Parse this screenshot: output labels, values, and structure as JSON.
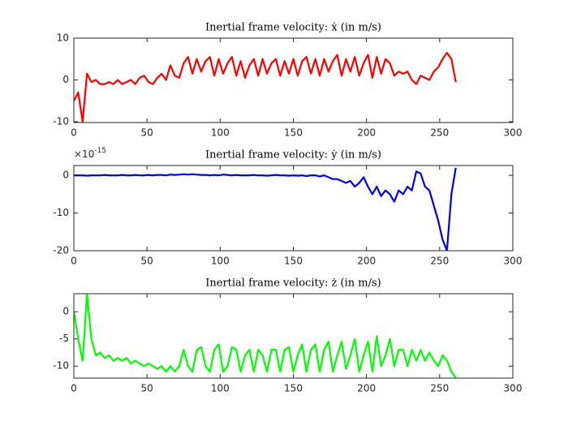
{
  "chart_data": [
    {
      "type": "line",
      "title": "Inertial frame velocity: ẋ (in m/s)",
      "x": [
        0,
        3,
        6,
        9,
        12,
        15,
        18,
        21,
        24,
        27,
        30,
        33,
        36,
        39,
        42,
        45,
        48,
        51,
        54,
        57,
        60,
        63,
        66,
        69,
        72,
        75,
        78,
        81,
        84,
        87,
        90,
        93,
        96,
        99,
        102,
        105,
        108,
        111,
        114,
        117,
        120,
        123,
        126,
        129,
        132,
        135,
        138,
        141,
        144,
        147,
        150,
        153,
        156,
        159,
        162,
        165,
        168,
        171,
        174,
        177,
        180,
        183,
        186,
        189,
        192,
        195,
        198,
        201,
        204,
        207,
        210,
        213,
        216,
        219,
        222,
        225,
        228,
        231,
        234,
        237,
        240,
        243,
        246,
        249,
        252,
        255,
        258,
        261
      ],
      "values": [
        -5,
        -3,
        -10,
        1.5,
        -0.5,
        0,
        -1,
        -1,
        -0.5,
        -1,
        0,
        -1,
        -0.5,
        0,
        -1,
        0.5,
        1,
        -0.5,
        -1,
        0.5,
        1.5,
        0,
        3.5,
        1,
        0.5,
        4,
        5.5,
        1.5,
        5,
        2,
        4.5,
        5.5,
        1,
        5,
        1.5,
        4,
        5.5,
        1,
        4.5,
        0.5,
        3.5,
        5,
        1,
        5,
        1.5,
        4,
        5,
        1,
        4.5,
        1.5,
        5,
        1,
        4.5,
        5.5,
        1.5,
        5,
        1,
        5,
        2,
        4.5,
        6,
        1,
        5,
        2,
        5.5,
        1,
        4,
        6,
        0.5,
        5.5,
        1.5,
        5,
        4,
        1,
        2,
        1.5,
        2,
        0,
        -1,
        1,
        0.5,
        0,
        2,
        3,
        5,
        6.5,
        5,
        -0.5
      ],
      "color": "#ff0000",
      "xlim": [
        0,
        300
      ],
      "xticks": [
        0,
        50,
        100,
        150,
        200,
        250,
        300
      ],
      "ylim": [
        -10.2,
        10
      ],
      "yticks": [
        -10,
        0,
        10
      ]
    },
    {
      "type": "line",
      "title": "Inertial frame velocity: ẏ (in m/s)",
      "y_multiplier": "×10",
      "y_exponent": "-15",
      "x": [
        0,
        3,
        6,
        9,
        12,
        15,
        18,
        21,
        24,
        27,
        30,
        33,
        36,
        39,
        42,
        45,
        48,
        51,
        54,
        57,
        60,
        63,
        66,
        69,
        72,
        75,
        78,
        81,
        84,
        87,
        90,
        93,
        96,
        99,
        102,
        105,
        108,
        111,
        114,
        117,
        120,
        123,
        126,
        129,
        132,
        135,
        138,
        141,
        144,
        147,
        150,
        153,
        156,
        159,
        162,
        165,
        168,
        171,
        174,
        177,
        180,
        183,
        186,
        189,
        192,
        195,
        198,
        201,
        204,
        207,
        210,
        213,
        216,
        219,
        222,
        225,
        228,
        231,
        234,
        237,
        240,
        243,
        246,
        249,
        252,
        255,
        258,
        261
      ],
      "values": [
        0,
        0,
        0,
        -0.1,
        0,
        0,
        0,
        0.1,
        0,
        0,
        0,
        0.1,
        0,
        0,
        0.1,
        0,
        0,
        0.1,
        0,
        0.1,
        0.1,
        0,
        0.2,
        0.1,
        0.2,
        0.3,
        0.2,
        0.3,
        0.2,
        0.1,
        0.1,
        0,
        0.1,
        0,
        0.2,
        0.1,
        0,
        0.1,
        0,
        0,
        0,
        0.1,
        0,
        0,
        -0.1,
        0,
        0.1,
        0,
        0,
        -0.1,
        0,
        -0.1,
        0,
        -0.2,
        0,
        0,
        -0.3,
        0,
        -0.5,
        -1,
        -1,
        -1.5,
        -2,
        -1.5,
        -3,
        -2,
        -0.5,
        -3,
        -5,
        -3,
        -5.5,
        -4,
        -5,
        -7,
        -4,
        -5,
        -3,
        -4,
        1,
        0.5,
        -3,
        -4,
        -8,
        -12,
        -17,
        -20,
        -5,
        2
      ],
      "color": "#0000e6",
      "xlim": [
        0,
        300
      ],
      "xticks": [
        0,
        50,
        100,
        150,
        200,
        250,
        300
      ],
      "ylim": [
        -20,
        2.6
      ],
      "yticks": [
        -20,
        -10,
        0
      ]
    },
    {
      "type": "line",
      "title": "Inertial frame velocity: ż (in m/s)",
      "x": [
        0,
        3,
        6,
        9,
        12,
        15,
        18,
        21,
        24,
        27,
        30,
        33,
        36,
        39,
        42,
        45,
        48,
        51,
        54,
        57,
        60,
        63,
        66,
        69,
        72,
        75,
        78,
        81,
        84,
        87,
        90,
        93,
        96,
        99,
        102,
        105,
        108,
        111,
        114,
        117,
        120,
        123,
        126,
        129,
        132,
        135,
        138,
        141,
        144,
        147,
        150,
        153,
        156,
        159,
        162,
        165,
        168,
        171,
        174,
        177,
        180,
        183,
        186,
        189,
        192,
        195,
        198,
        201,
        204,
        207,
        210,
        213,
        216,
        219,
        222,
        225,
        228,
        231,
        234,
        237,
        240,
        243,
        246,
        249,
        252,
        255,
        258,
        261
      ],
      "values": [
        0,
        -5,
        -9,
        3.3,
        -5,
        -8,
        -7.5,
        -8.5,
        -8,
        -9,
        -8.5,
        -9,
        -8.5,
        -9.5,
        -9,
        -9.5,
        -10,
        -9.5,
        -10,
        -10.5,
        -10,
        -11,
        -10,
        -11,
        -10,
        -7,
        -10,
        -11,
        -7,
        -6.5,
        -10,
        -11,
        -7,
        -6,
        -11,
        -10,
        -6.5,
        -7,
        -11,
        -8,
        -7,
        -11,
        -7,
        -8,
        -11,
        -7,
        -7,
        -11,
        -7,
        -6.5,
        -11,
        -8,
        -6,
        -11,
        -7,
        -6,
        -11,
        -7,
        -5.5,
        -11,
        -8,
        -5.5,
        -10.5,
        -8,
        -5,
        -11,
        -8,
        -5.5,
        -11,
        -4.5,
        -10,
        -8,
        -5,
        -10,
        -7,
        -7,
        -10,
        -7,
        -9,
        -7,
        -9,
        -7.5,
        -9,
        -10,
        -8,
        -9,
        -11,
        -12.2
      ],
      "color": "#00ff00",
      "xlim": [
        0,
        300
      ],
      "xticks": [
        0,
        50,
        100,
        150,
        200,
        250,
        300
      ],
      "ylim": [
        -12.2,
        3.3
      ],
      "yticks": [
        -10,
        -5,
        0
      ]
    }
  ]
}
